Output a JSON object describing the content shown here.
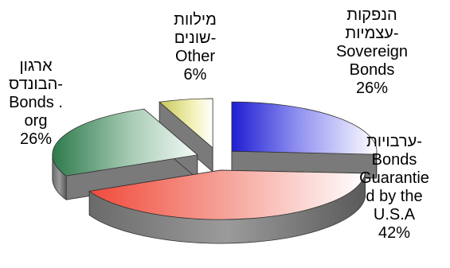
{
  "chart_data": {
    "type": "pie",
    "style": "3d-exploded",
    "title": "",
    "legend": "none",
    "slices": [
      {
        "label_lines": [
          "הנפקות",
          "עצמיות-",
          "Sovereign",
          "Bonds"
        ],
        "value": 26,
        "value_label": "26%",
        "color": "#2a2ad8"
      },
      {
        "label_lines": [
          "ערבויות-",
          "Bonds",
          "Guarantie",
          "d by the",
          "U.S.A"
        ],
        "value": 42,
        "value_label": "42%",
        "color": "#f06050"
      },
      {
        "label_lines": [
          "ארגון",
          "הבונדס-",
          "Bonds .",
          "org"
        ],
        "value": 26,
        "value_label": "26%",
        "color": "#3d8a5a"
      },
      {
        "label_lines": [
          "מילוות",
          "שונים-",
          "Other"
        ],
        "value": 6,
        "value_label": "6%",
        "color": "#e2e07a"
      }
    ]
  }
}
